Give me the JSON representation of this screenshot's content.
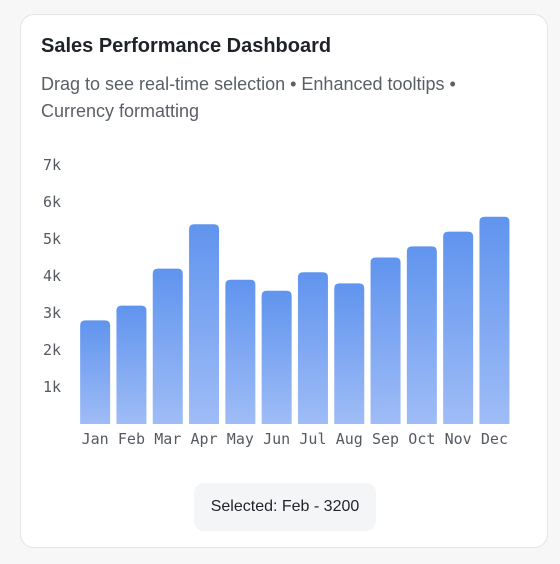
{
  "card": {
    "title": "Sales Performance Dashboard",
    "subtitle": "Drag to see real-time selection • Enhanced tooltips • Currency formatting"
  },
  "selection": {
    "text": "Selected: Feb - 3200"
  },
  "colors": {
    "bar_top": "#6094ee",
    "bar_bottom": "#9fbcf6"
  },
  "chart_data": {
    "type": "bar",
    "categories": [
      "Jan",
      "Feb",
      "Mar",
      "Apr",
      "May",
      "Jun",
      "Jul",
      "Aug",
      "Sep",
      "Oct",
      "Nov",
      "Dec"
    ],
    "values": [
      2800,
      3200,
      4200,
      5400,
      3900,
      3600,
      4100,
      3800,
      4500,
      4800,
      5200,
      5600
    ],
    "y_ticks": [
      1000,
      2000,
      3000,
      4000,
      5000,
      6000,
      7000
    ],
    "y_tick_labels": [
      "1k",
      "2k",
      "3k",
      "4k",
      "5k",
      "6k",
      "7k"
    ],
    "ylim": [
      0,
      7000
    ],
    "grid": false,
    "title": "",
    "xlabel": "",
    "ylabel": ""
  }
}
